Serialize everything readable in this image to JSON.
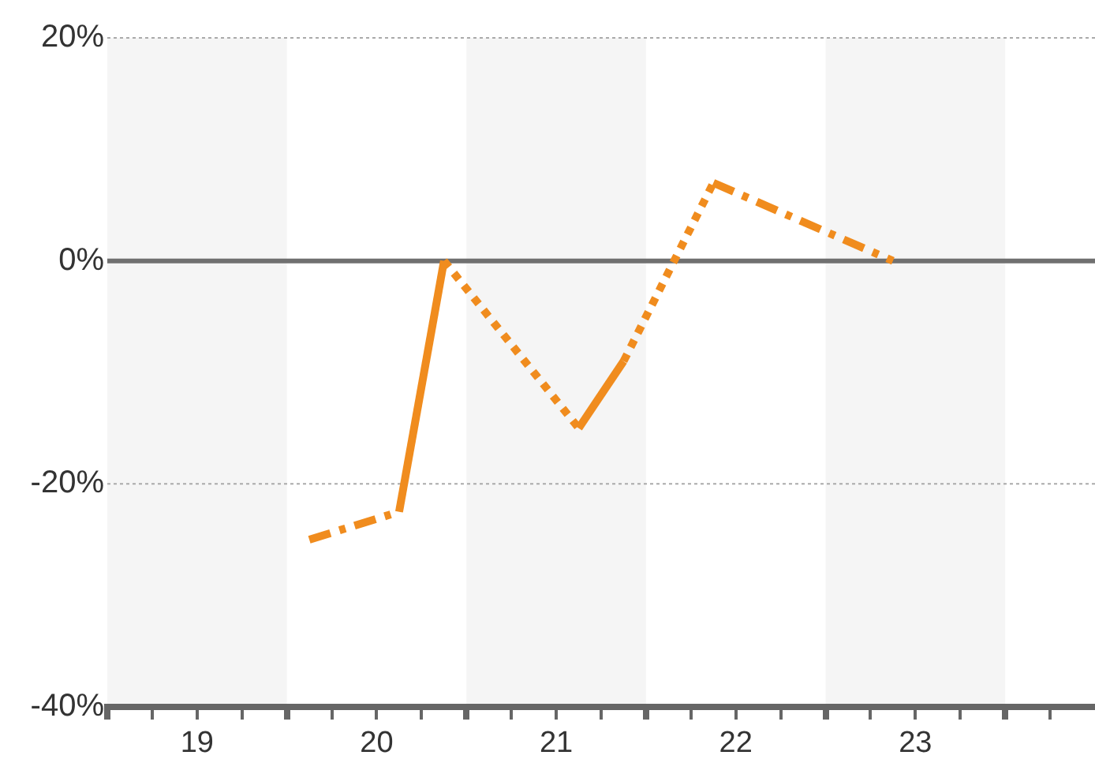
{
  "chart_data": {
    "type": "line",
    "marker": "none",
    "legend": false,
    "xlim": [
      19,
      24.5
    ],
    "xticks": [
      {
        "value": 19,
        "label": null
      },
      {
        "value": 19.25,
        "label": null
      },
      {
        "value": 19.5,
        "label": "19"
      },
      {
        "value": 19.75,
        "label": null
      },
      {
        "value": 20,
        "label": null
      },
      {
        "value": 20.25,
        "label": null
      },
      {
        "value": 20.5,
        "label": "20"
      },
      {
        "value": 20.75,
        "label": null
      },
      {
        "value": 21,
        "label": null
      },
      {
        "value": 21.25,
        "label": null
      },
      {
        "value": 21.5,
        "label": "21"
      },
      {
        "value": 21.75,
        "label": null
      },
      {
        "value": 22,
        "label": null
      },
      {
        "value": 22.25,
        "label": null
      },
      {
        "value": 22.5,
        "label": "22"
      },
      {
        "value": 22.75,
        "label": null
      },
      {
        "value": 23,
        "label": null
      },
      {
        "value": 23.25,
        "label": null
      },
      {
        "value": 23.5,
        "label": "23"
      },
      {
        "value": 23.75,
        "label": null
      },
      {
        "value": 24,
        "label": null
      },
      {
        "value": 24.25,
        "label": null
      }
    ],
    "ylim": [
      -40,
      20
    ],
    "yticks": [
      {
        "value": -40,
        "label": "-40%"
      },
      {
        "value": -20,
        "label": "-20%"
      },
      {
        "value": 0,
        "label": "0%"
      },
      {
        "value": 20,
        "label": "20%"
      }
    ],
    "ref_lines": [
      {
        "axis": "y",
        "value": 0,
        "color": "#707070"
      },
      {
        "axis": "y",
        "value": 20,
        "color": "#aaaaaa",
        "line_style": "dotted"
      },
      {
        "axis": "y",
        "value": -20,
        "color": "#aaaaaa",
        "line_style": "dotted"
      }
    ],
    "bands": [
      {
        "axis": "x",
        "from": 19,
        "to": 20,
        "color": "#f5f5f5"
      },
      {
        "axis": "x",
        "from": 21,
        "to": 22,
        "color": "#f5f5f5"
      },
      {
        "axis": "x",
        "from": 23,
        "to": 24,
        "color": "#f5f5f5"
      }
    ],
    "series": [
      {
        "line_style": "dashed",
        "color": "#f08c1e",
        "x": [
          20.125,
          20.625
        ],
        "values": [
          -25,
          -22.5
        ]
      },
      {
        "line_style": "solid",
        "color": "#f08c1e",
        "x": [
          20.625,
          20.875
        ],
        "values": [
          -22.5,
          0
        ]
      },
      {
        "line_style": "dotted",
        "color": "#f08c1e",
        "x": [
          20.875,
          21.625
        ],
        "values": [
          0,
          -15
        ]
      },
      {
        "line_style": "solid",
        "color": "#f08c1e",
        "x": [
          21.625,
          21.875
        ],
        "values": [
          -15,
          -9
        ]
      },
      {
        "line_style": "dotted",
        "color": "#f08c1e",
        "x": [
          21.875,
          22.375
        ],
        "values": [
          -9,
          7
        ]
      },
      {
        "line_style": "dashed",
        "color": "#f08c1e",
        "x": [
          22.375,
          23.375
        ],
        "values": [
          7,
          0
        ]
      }
    ]
  }
}
